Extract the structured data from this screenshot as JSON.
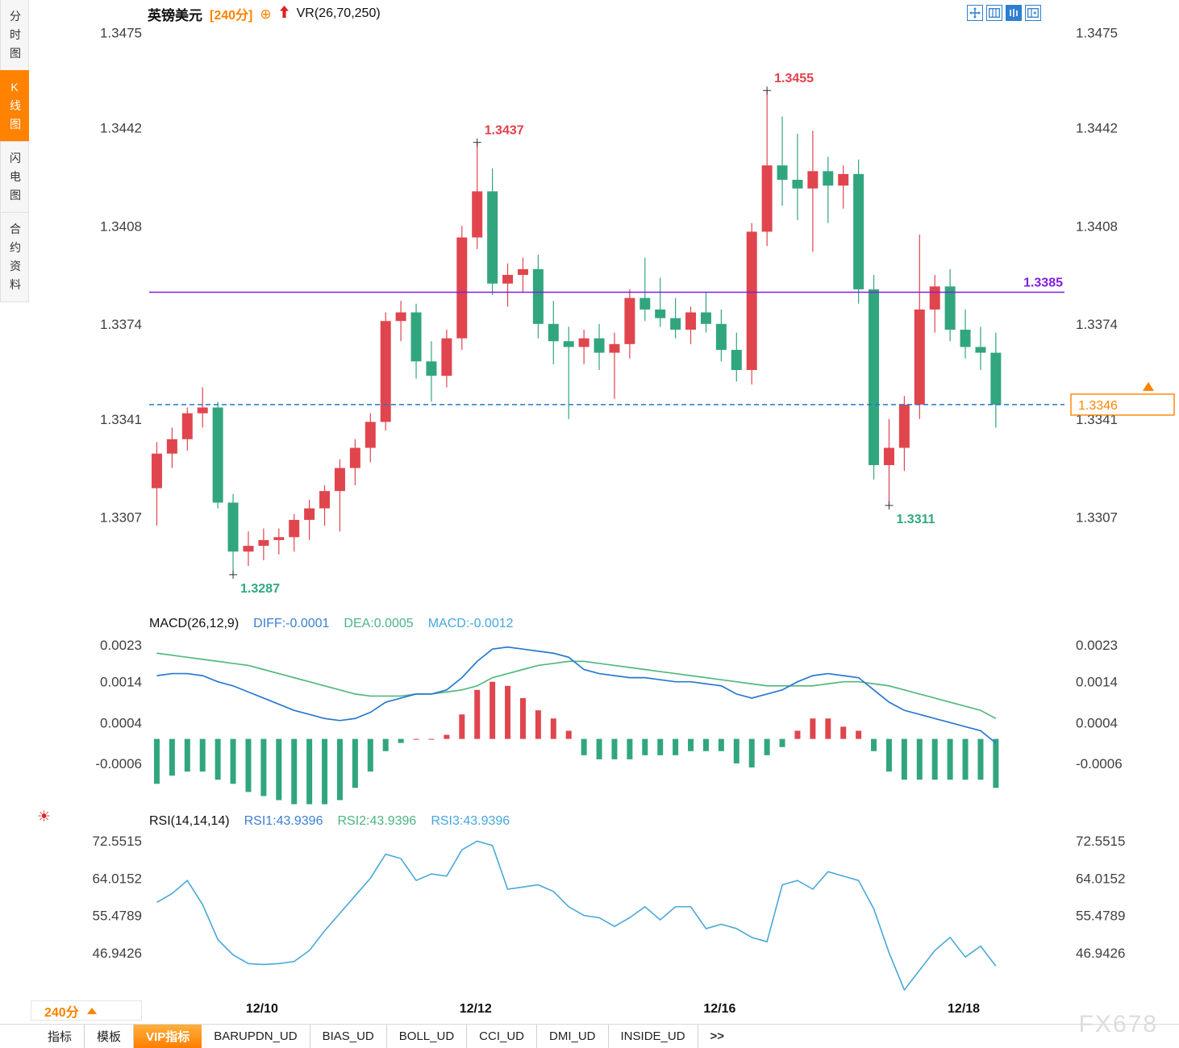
{
  "watermark": "FX678",
  "sidebar": {
    "items": [
      {
        "key": "time-chart",
        "label": "分时图",
        "active": false
      },
      {
        "key": "kline-chart",
        "label": "K线图",
        "active": true
      },
      {
        "key": "flash-chart",
        "label": "闪电图",
        "active": false
      },
      {
        "key": "contract-info",
        "label": "合约资料",
        "active": false
      }
    ]
  },
  "header": {
    "symbol": "英镑美元",
    "period": "[240分]",
    "overlay": "VR(26,70,250)"
  },
  "indicators": {
    "macd": {
      "title": "MACD(26,12,9)",
      "diff": "DIFF:-0.0001",
      "dea": "DEA:0.0005",
      "macd": "MACD:-0.0012"
    },
    "rsi": {
      "title": "RSI(14,14,14)",
      "rsi1": "RSI1:43.9396",
      "rsi2": "RSI2:43.9396",
      "rsi3": "RSI3:43.9396"
    }
  },
  "bottom": {
    "period": "240分",
    "tabs": [
      {
        "key": "indicator",
        "label": "指标",
        "active": false
      },
      {
        "key": "template",
        "label": "模板",
        "active": false
      },
      {
        "key": "vip",
        "label": "VIP指标",
        "active": true
      },
      {
        "key": "barupdn",
        "label": "BARUPDN_UD",
        "active": false
      },
      {
        "key": "bias",
        "label": "BIAS_UD",
        "active": false
      },
      {
        "key": "boll",
        "label": "BOLL_UD",
        "active": false
      },
      {
        "key": "cci",
        "label": "CCI_UD",
        "active": false
      },
      {
        "key": "dmi",
        "label": "DMI_UD",
        "active": false
      },
      {
        "key": "inside",
        "label": "INSIDE_UD",
        "active": false
      },
      {
        "key": "more",
        "label": ">>",
        "active": false
      }
    ]
  },
  "chart_data": [
    {
      "type": "candlestick",
      "title": "英镑美元 240分",
      "slots": 60,
      "ylim": [
        1.3278,
        1.3478
      ],
      "yticks": [
        1.3475,
        1.3442,
        1.3408,
        1.3374,
        1.3341,
        1.3307
      ],
      "xticks": [
        {
          "index": 7,
          "label": "12/10"
        },
        {
          "index": 21,
          "label": "12/12"
        },
        {
          "index": 37,
          "label": "12/16"
        },
        {
          "index": 53,
          "label": "12/18"
        }
      ],
      "up_color": "#e0454e",
      "down_color": "#31a67e",
      "candles": [
        [
          1.3317,
          1.3333,
          1.3304,
          1.3329
        ],
        [
          1.3329,
          1.3338,
          1.3324,
          1.3334
        ],
        [
          1.3334,
          1.3345,
          1.333,
          1.3343
        ],
        [
          1.3343,
          1.3352,
          1.3338,
          1.3345
        ],
        [
          1.3345,
          1.3347,
          1.331,
          1.3312
        ],
        [
          1.3312,
          1.3315,
          1.3287,
          1.3295
        ],
        [
          1.3295,
          1.3302,
          1.329,
          1.3297
        ],
        [
          1.3297,
          1.3303,
          1.3292,
          1.3299
        ],
        [
          1.3299,
          1.3303,
          1.3294,
          1.33
        ],
        [
          1.33,
          1.3308,
          1.3295,
          1.3306
        ],
        [
          1.3306,
          1.3313,
          1.3299,
          1.331
        ],
        [
          1.331,
          1.3318,
          1.3304,
          1.3316
        ],
        [
          1.3316,
          1.3327,
          1.3302,
          1.3324
        ],
        [
          1.3324,
          1.3334,
          1.3318,
          1.3331
        ],
        [
          1.3331,
          1.3343,
          1.3326,
          1.334
        ],
        [
          1.334,
          1.3378,
          1.3337,
          1.3375
        ],
        [
          1.3375,
          1.3382,
          1.3368,
          1.3378
        ],
        [
          1.3378,
          1.3381,
          1.3355,
          1.3361
        ],
        [
          1.3361,
          1.3368,
          1.3347,
          1.3356
        ],
        [
          1.3356,
          1.3372,
          1.3352,
          1.3369
        ],
        [
          1.3369,
          1.3408,
          1.3365,
          1.3404
        ],
        [
          1.3404,
          1.3437,
          1.34,
          1.342
        ],
        [
          1.342,
          1.3428,
          1.3384,
          1.3388
        ],
        [
          1.3388,
          1.3395,
          1.338,
          1.3391
        ],
        [
          1.3391,
          1.3397,
          1.3385,
          1.3393
        ],
        [
          1.3393,
          1.3398,
          1.3369,
          1.3374
        ],
        [
          1.3374,
          1.3382,
          1.336,
          1.3368
        ],
        [
          1.3368,
          1.3373,
          1.3341,
          1.3366
        ],
        [
          1.3366,
          1.3372,
          1.336,
          1.3369
        ],
        [
          1.3369,
          1.3374,
          1.3358,
          1.3364
        ],
        [
          1.3364,
          1.3371,
          1.3348,
          1.3367
        ],
        [
          1.3367,
          1.3386,
          1.3362,
          1.3383
        ],
        [
          1.3383,
          1.3397,
          1.3375,
          1.3379
        ],
        [
          1.3379,
          1.339,
          1.3373,
          1.3376
        ],
        [
          1.3376,
          1.3383,
          1.3369,
          1.3372
        ],
        [
          1.3372,
          1.338,
          1.3367,
          1.3378
        ],
        [
          1.3378,
          1.3385,
          1.3371,
          1.3374
        ],
        [
          1.3374,
          1.3379,
          1.3361,
          1.3365
        ],
        [
          1.3365,
          1.3371,
          1.3354,
          1.3358
        ],
        [
          1.3358,
          1.3409,
          1.3353,
          1.3406
        ],
        [
          1.3406,
          1.3455,
          1.3401,
          1.3429
        ],
        [
          1.3429,
          1.3446,
          1.3415,
          1.3424
        ],
        [
          1.3424,
          1.344,
          1.341,
          1.3421
        ],
        [
          1.3421,
          1.3441,
          1.3399,
          1.3427
        ],
        [
          1.3427,
          1.3432,
          1.3409,
          1.3422
        ],
        [
          1.3422,
          1.3429,
          1.3414,
          1.3426
        ],
        [
          1.3426,
          1.3431,
          1.3381,
          1.3386
        ],
        [
          1.3386,
          1.3391,
          1.332,
          1.3325
        ],
        [
          1.3325,
          1.3341,
          1.3311,
          1.3331
        ],
        [
          1.3331,
          1.3349,
          1.3323,
          1.3346
        ],
        [
          1.3346,
          1.3405,
          1.3341,
          1.3379
        ],
        [
          1.3379,
          1.3391,
          1.3371,
          1.3387
        ],
        [
          1.3387,
          1.3393,
          1.3368,
          1.3372
        ],
        [
          1.3372,
          1.3379,
          1.3362,
          1.3366
        ],
        [
          1.3366,
          1.3373,
          1.3358,
          1.3364
        ],
        [
          1.3364,
          1.3371,
          1.3338,
          1.3346
        ]
      ],
      "hlines": [
        {
          "price": 1.3385,
          "label": "1.3385",
          "color": "#801fe0",
          "style": "solid"
        },
        {
          "price": 1.3346,
          "tag": "1.3346",
          "color": "#2277cc",
          "style": "dashed",
          "tag_color": "#ff8200"
        }
      ],
      "annotations": [
        {
          "type": "high",
          "index": 21,
          "price": 1.3437,
          "label": "1.3437",
          "color": "#e0404a"
        },
        {
          "type": "high",
          "index": 40,
          "price": 1.3455,
          "label": "1.3455",
          "color": "#e0404a"
        },
        {
          "type": "low",
          "index": 5,
          "price": 1.3287,
          "label": "1.3287",
          "color": "#2ea881"
        },
        {
          "type": "low",
          "index": 48,
          "price": 1.3311,
          "label": "1.3311",
          "color": "#2ea881"
        }
      ]
    },
    {
      "type": "macd",
      "ylim": [
        -0.00145,
        0.0025
      ],
      "yticks": [
        0.0023,
        0.0014,
        0.0004,
        -0.0006
      ],
      "colors": {
        "diff": "#2979cf",
        "dea": "#53b87f",
        "hist_up": "#e0454e",
        "hist_down": "#31a67e"
      },
      "diff": [
        0.00155,
        0.0016,
        0.0016,
        0.00155,
        0.0014,
        0.0013,
        0.00115,
        0.001,
        0.00085,
        0.0007,
        0.0006,
        0.0005,
        0.00045,
        0.0005,
        0.00065,
        0.0009,
        0.001,
        0.0011,
        0.0011,
        0.0012,
        0.0015,
        0.0019,
        0.0022,
        0.00225,
        0.0022,
        0.00215,
        0.0021,
        0.002,
        0.0017,
        0.0016,
        0.00155,
        0.0015,
        0.0015,
        0.00145,
        0.0014,
        0.0014,
        0.00135,
        0.0013,
        0.0011,
        0.001,
        0.0011,
        0.0012,
        0.0014,
        0.00155,
        0.0016,
        0.00155,
        0.0015,
        0.0012,
        0.0009,
        0.0007,
        0.0006,
        0.0005,
        0.0004,
        0.0003,
        0.0002,
        -0.0001
      ],
      "dea": [
        0.0021,
        0.00205,
        0.002,
        0.00195,
        0.0019,
        0.00185,
        0.0018,
        0.0017,
        0.0016,
        0.0015,
        0.0014,
        0.0013,
        0.0012,
        0.0011,
        0.00105,
        0.00105,
        0.00105,
        0.0011,
        0.0011,
        0.00115,
        0.0012,
        0.0013,
        0.0015,
        0.0016,
        0.0017,
        0.0018,
        0.00185,
        0.0019,
        0.0019,
        0.00185,
        0.0018,
        0.00175,
        0.0017,
        0.00165,
        0.0016,
        0.00155,
        0.0015,
        0.00145,
        0.0014,
        0.00135,
        0.0013,
        0.0013,
        0.0013,
        0.0013,
        0.00135,
        0.0014,
        0.0014,
        0.00135,
        0.0013,
        0.0012,
        0.0011,
        0.001,
        0.0009,
        0.0008,
        0.0007,
        0.0005
      ],
      "hist_rule": "2*(diff-dea)"
    },
    {
      "type": "line",
      "name": "RSI",
      "ylim": [
        37.2,
        74.95
      ],
      "yticks": [
        72.5515,
        64.0152,
        55.4789,
        46.9426
      ],
      "color": "#4aa8d8",
      "values": [
        58.5,
        60.5,
        63.5,
        58,
        50,
        46.5,
        44.5,
        44.3,
        44.5,
        45,
        47.5,
        52,
        56,
        60,
        64,
        69.5,
        68.5,
        63.5,
        65,
        64.5,
        70.5,
        72.5,
        71.5,
        61.5,
        62,
        62.5,
        61,
        57.5,
        55.5,
        55,
        53,
        55,
        57.5,
        54.5,
        57.5,
        57.5,
        52.5,
        53.5,
        52.5,
        50.5,
        49.5,
        62.5,
        63.5,
        61.5,
        65.5,
        64.5,
        63.5,
        57,
        47,
        38.5,
        43,
        47.5,
        50.5,
        46,
        48.5,
        43.9396
      ]
    }
  ]
}
